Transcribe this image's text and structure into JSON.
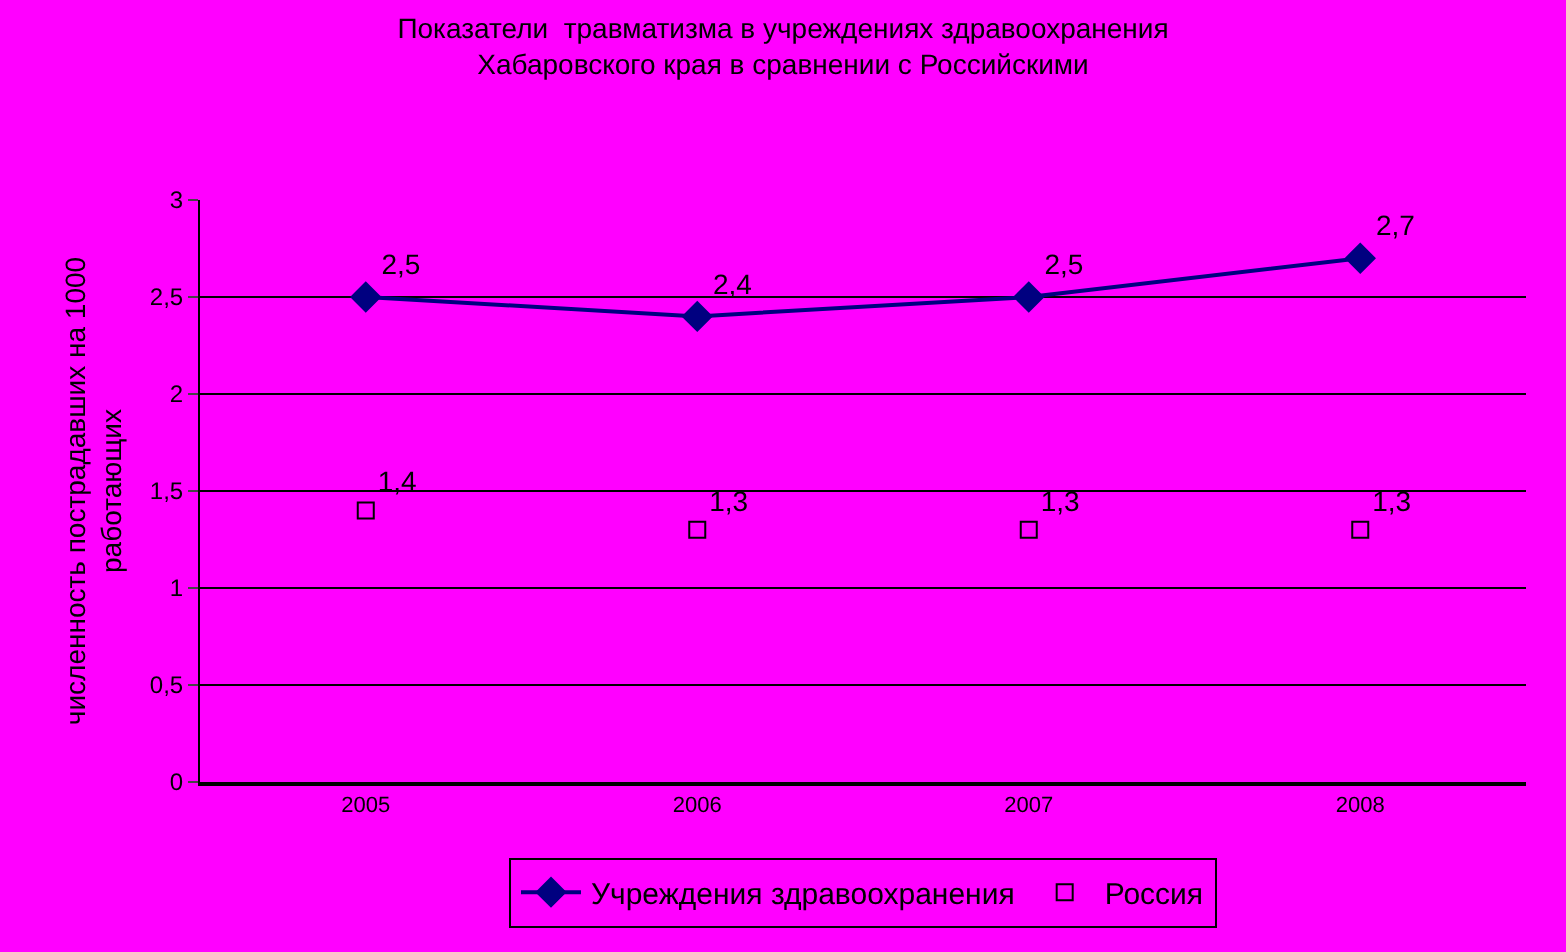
{
  "chart_data": {
    "type": "line",
    "title": "Показатели  травматизма в учреждениях здравоохранения\nХабаровского края в сравнении с Российскими",
    "ylabel": "численность пострадавших на 1000\nработающих",
    "categories": [
      "2005",
      "2006",
      "2007",
      "2008"
    ],
    "series": [
      {
        "name": "Учреждения здравоохранения",
        "type": "line",
        "color": "#000080",
        "marker": "diamond",
        "values": [
          2.5,
          2.4,
          2.5,
          2.7
        ],
        "value_labels": [
          "2,5",
          "2,4",
          "2,5",
          "2,7"
        ]
      },
      {
        "name": "Россия",
        "type": "scatter",
        "color": "#000000",
        "marker": "square",
        "values": [
          1.4,
          1.3,
          1.3,
          1.3
        ],
        "value_labels": [
          "1,4",
          "1,3",
          "1,3",
          "1,3"
        ]
      }
    ],
    "ylim": [
      0,
      3
    ],
    "yticks": [
      0,
      {
        "value": 0.5,
        "label": "0,5"
      },
      1,
      {
        "value": 1.5,
        "label": "1,5"
      },
      2,
      {
        "value": 2.5,
        "label": "2,5"
      },
      3
    ],
    "grid": "y",
    "legend": "bottom"
  }
}
